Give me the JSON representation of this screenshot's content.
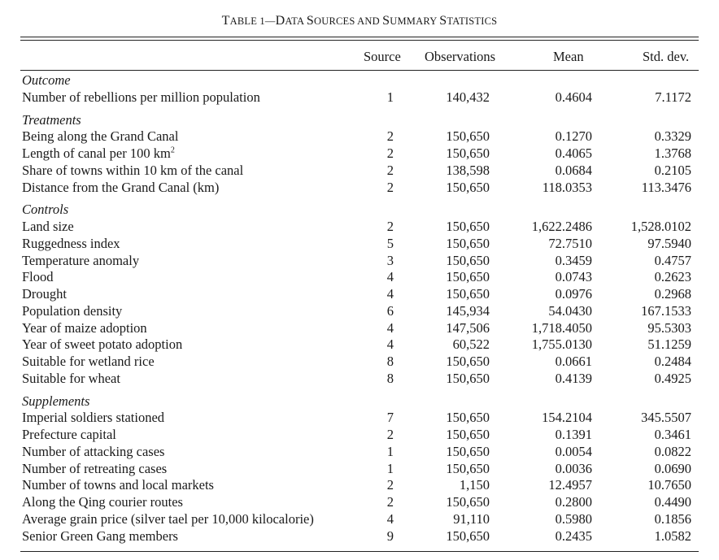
{
  "table": {
    "title_prefix": "T",
    "title_rest": "ABLE 1—",
    "title_words": [
      "D",
      "ATA ",
      "S",
      "OURCES AND ",
      "S",
      "UMMARY ",
      "S",
      "TATISTICS"
    ],
    "headers": {
      "source": "Source",
      "observations": "Observations",
      "mean": "Mean",
      "std": "Std. dev."
    },
    "sections": [
      {
        "name": "Outcome",
        "rows": [
          {
            "label": "Number of rebellions per million population",
            "source": "1",
            "obs": "140,432",
            "mean": "0.4604",
            "std": "7.1172"
          }
        ]
      },
      {
        "name": "Treatments",
        "rows": [
          {
            "label": "Being along the Grand Canal",
            "source": "2",
            "obs": "150,650",
            "mean": "0.1270",
            "std": "0.3329"
          },
          {
            "label": "Length of canal per 100 km",
            "sup": "2",
            "source": "2",
            "obs": "150,650",
            "mean": "0.4065",
            "std": "1.3768"
          },
          {
            "label": "Share of towns within 10 km of the canal",
            "source": "2",
            "obs": "138,598",
            "mean": "0.0684",
            "std": "0.2105"
          },
          {
            "label": "Distance from the Grand Canal (km)",
            "source": "2",
            "obs": "150,650",
            "mean": "118.0353",
            "std": "113.3476"
          }
        ]
      },
      {
        "name": "Controls",
        "rows": [
          {
            "label": "Land size",
            "source": "2",
            "obs": "150,650",
            "mean": "1,622.2486",
            "std": "1,528.0102"
          },
          {
            "label": "Ruggedness index",
            "source": "5",
            "obs": "150,650",
            "mean": "72.7510",
            "std": "97.5940"
          },
          {
            "label": "Temperature anomaly",
            "source": "3",
            "obs": "150,650",
            "mean": "0.3459",
            "std": "0.4757"
          },
          {
            "label": "Flood",
            "source": "4",
            "obs": "150,650",
            "mean": "0.0743",
            "std": "0.2623"
          },
          {
            "label": "Drought",
            "source": "4",
            "obs": "150,650",
            "mean": "0.0976",
            "std": "0.2968"
          },
          {
            "label": "Population density",
            "source": "6",
            "obs": "145,934",
            "mean": "54.0430",
            "std": "167.1533"
          },
          {
            "label": "Year of maize adoption",
            "source": "4",
            "obs": "147,506",
            "mean": "1,718.4050",
            "std": "95.5303"
          },
          {
            "label": "Year of sweet potato adoption",
            "source": "4",
            "obs": "60,522",
            "mean": "1,755.0130",
            "std": "51.1259"
          },
          {
            "label": "Suitable for wetland rice",
            "source": "8",
            "obs": "150,650",
            "mean": "0.0661",
            "std": "0.2484"
          },
          {
            "label": "Suitable for wheat",
            "source": "8",
            "obs": "150,650",
            "mean": "0.4139",
            "std": "0.4925"
          }
        ]
      },
      {
        "name": "Supplements",
        "rows": [
          {
            "label": "Imperial soldiers stationed",
            "source": "7",
            "obs": "150,650",
            "mean": "154.2104",
            "std": "345.5507"
          },
          {
            "label": "Prefecture capital",
            "source": "2",
            "obs": "150,650",
            "mean": "0.1391",
            "std": "0.3461"
          },
          {
            "label": "Number of attacking cases",
            "source": "1",
            "obs": "150,650",
            "mean": "0.0054",
            "std": "0.0822"
          },
          {
            "label": "Number of retreating cases",
            "source": "1",
            "obs": "150,650",
            "mean": "0.0036",
            "std": "0.0690"
          },
          {
            "label": "Number of towns and local markets",
            "source": "2",
            "obs": "1,150",
            "mean": "12.4957",
            "std": "10.7650"
          },
          {
            "label": "Along the Qing courier routes",
            "source": "2",
            "obs": "150,650",
            "mean": "0.2800",
            "std": "0.4490"
          },
          {
            "label": "Average grain price (silver tael per 10,000 kilocalorie)",
            "source": "4",
            "obs": "91,110",
            "mean": "0.5980",
            "std": "0.1856"
          },
          {
            "label": "Senior Green Gang members",
            "source": "9",
            "obs": "150,650",
            "mean": "0.2435",
            "std": "1.0582"
          }
        ]
      }
    ]
  }
}
